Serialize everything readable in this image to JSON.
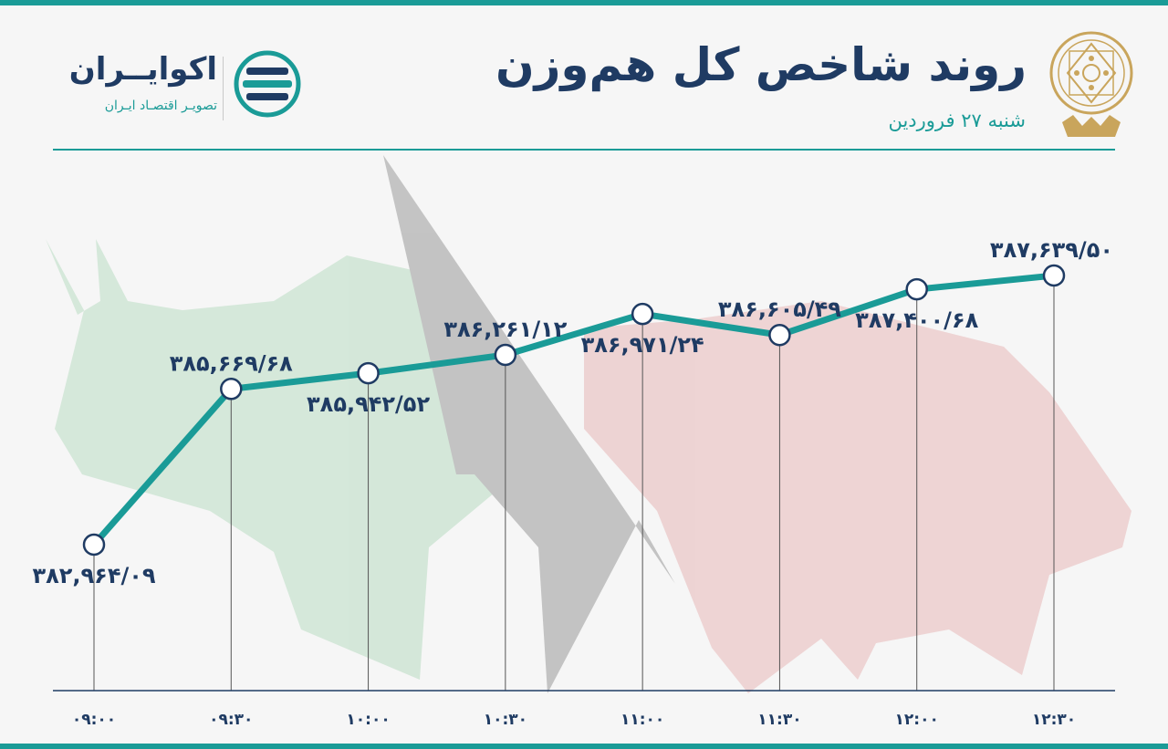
{
  "header": {
    "title": "روند شاخص کل هم‌وزن",
    "date": "شنبه ۲۷ فروردین"
  },
  "brand": {
    "name": "اکوایــران",
    "tagline": "تصویـر اقتصـاد ایـران"
  },
  "colors": {
    "line": "#1a9b97",
    "label": "#1f3b63",
    "marker_fill": "#ffffff",
    "marker_stroke": "#1f3b63",
    "bull": "#b9dcc2",
    "bear": "#e7b8b8",
    "arrow": "#9a9a9a"
  },
  "icons": {
    "seal": "stock-exchange-seal-icon",
    "logo": "ecoiran-logo-icon"
  },
  "chart_data": {
    "type": "line",
    "x": [
      "۰۹:۰۰",
      "۰۹:۳۰",
      "۱۰:۰۰",
      "۱۰:۳۰",
      "۱۱:۰۰",
      "۱۱:۳۰",
      "۱۲:۰۰",
      "۱۲:۳۰"
    ],
    "values": [
      382964.09,
      385669.68,
      385942.52,
      386261.12,
      386971.24,
      386605.49,
      387400.68,
      387639.5
    ],
    "value_labels": [
      "۳۸۲,۹۶۴/۰۹",
      "۳۸۵,۶۶۹/۶۸",
      "۳۸۵,۹۴۲/۵۲",
      "۳۸۶,۲۶۱/۱۲",
      "۳۸۶,۹۷۱/۲۴",
      "۳۸۶,۶۰۵/۴۹",
      "۳۸۷,۴۰۰/۶۸",
      "۳۸۷,۶۳۹/۵۰"
    ],
    "label_position": [
      "below",
      "above",
      "below",
      "above",
      "below",
      "above",
      "below",
      "above"
    ],
    "title": "روند شاخص کل هم‌وزن",
    "xlabel": "",
    "ylabel": "",
    "grid": false,
    "legend": "none"
  }
}
